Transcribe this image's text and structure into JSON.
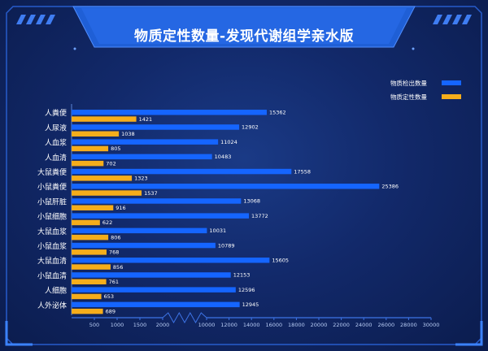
{
  "title": "物质定性数量-发现代谢组学亲水版",
  "colors": {
    "detected": "#1565ff",
    "confirmed": "#f5ad1b",
    "text": "#ffffff",
    "frame": "#2a63d8"
  },
  "chart_data": {
    "type": "bar",
    "orientation": "horizontal",
    "title": "物质定性数量-发现代谢组学亲水版",
    "categories": [
      "人粪便",
      "人尿液",
      "人血浆",
      "人血清",
      "大鼠粪便",
      "小鼠粪便",
      "小鼠肝脏",
      "小鼠细胞",
      "大鼠血浆",
      "小鼠血浆",
      "大鼠血清",
      "小鼠血清",
      "人细胞",
      "人外泌体"
    ],
    "series": [
      {
        "name": "物质检出数量",
        "color": "#1565ff",
        "values": [
          15362,
          12902,
          11024,
          10483,
          17558,
          25386,
          13068,
          13772,
          10031,
          10789,
          15605,
          12153,
          12596,
          12945
        ]
      },
      {
        "name": "物质定性数量",
        "color": "#f5ad1b",
        "values": [
          1421,
          1038,
          805,
          702,
          1323,
          1537,
          916,
          622,
          806,
          768,
          856,
          761,
          653,
          689
        ]
      }
    ],
    "x_ticks": [
      500,
      1000,
      1500,
      2000,
      10000,
      12000,
      14000,
      16000,
      18000,
      20000,
      22000,
      24000,
      26000,
      28000,
      30000
    ],
    "x_axis_break": [
      2000,
      10000
    ],
    "xlim": [
      0,
      30000
    ],
    "legend_position": "top-right"
  }
}
